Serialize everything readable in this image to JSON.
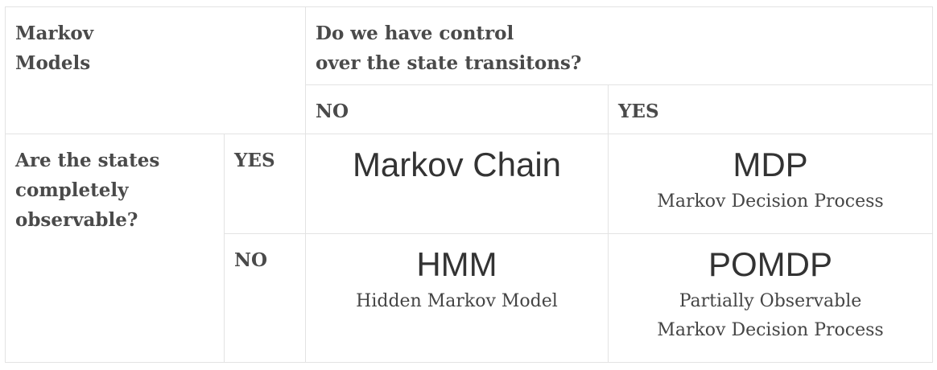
{
  "corner": {
    "line1": "Markov",
    "line2": "Models"
  },
  "columns_question": {
    "line1": "Do we have control",
    "line2": "over the state transitons?"
  },
  "columns": {
    "no_label": "NO",
    "yes_label": "YES"
  },
  "rows_question": {
    "line1": "Are the states",
    "line2": "completely",
    "line3": "observable?"
  },
  "rows": {
    "yes_label": "YES",
    "no_label": "NO"
  },
  "cells": {
    "observable_uncontrolled": {
      "title": "Markov Chain",
      "description": ""
    },
    "observable_controlled": {
      "title": "MDP",
      "description": "Markov Decision Process"
    },
    "hidden_uncontrolled": {
      "title": "HMM",
      "description": "Hidden Markov Model"
    },
    "hidden_controlled": {
      "title": "POMDP",
      "description_line1": "Partially Observable",
      "description_line2": "Markov Decision Process"
    }
  },
  "colors": {
    "border": "#e3e3e3",
    "header_text": "#4a4a4a",
    "title_text": "#333333",
    "description_text": "#444444"
  }
}
